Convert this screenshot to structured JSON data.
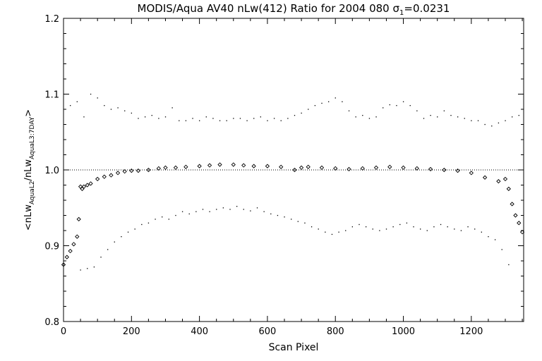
{
  "chart_data": {
    "type": "scatter",
    "title": "MODIS/Aqua AV40 nLw(412) Ratio for 2004 080",
    "sigma_label": "σ",
    "sigma_subscript": "1",
    "sigma_value": "=0.0231",
    "xlabel": "Scan Pixel",
    "ylabel": {
      "prefix": "<nLw",
      "sub1": "AquaL2",
      "mid": "/nLw",
      "sub2": "AquaL3:7DAY",
      "suffix": ">"
    },
    "xlim": [
      0,
      1354
    ],
    "ylim": [
      0.8,
      1.2
    ],
    "x_ticks": [
      "0",
      "200",
      "400",
      "600",
      "800",
      "1000",
      "1200"
    ],
    "y_ticks": [
      "0.8",
      "0.9",
      "1.0",
      "1.1",
      "1.2"
    ],
    "reference_line": 1.0,
    "series": [
      {
        "role": "mean",
        "marker": "diamond",
        "x": [
          0,
          10,
          20,
          30,
          40,
          45,
          50,
          55,
          60,
          70,
          80,
          100,
          120,
          140,
          160,
          180,
          200,
          220,
          250,
          280,
          300,
          330,
          360,
          400,
          430,
          460,
          500,
          530,
          560,
          600,
          640,
          680,
          700,
          720,
          760,
          800,
          840,
          880,
          920,
          960,
          1000,
          1040,
          1080,
          1120,
          1160,
          1200,
          1240,
          1280,
          1300,
          1310,
          1320,
          1330,
          1340,
          1350
        ],
        "y": [
          0.875,
          0.885,
          0.893,
          0.902,
          0.912,
          0.935,
          0.978,
          0.975,
          0.978,
          0.98,
          0.982,
          0.988,
          0.991,
          0.993,
          0.996,
          0.998,
          0.999,
          0.999,
          1.0,
          1.002,
          1.003,
          1.003,
          1.004,
          1.005,
          1.006,
          1.007,
          1.007,
          1.006,
          1.005,
          1.005,
          1.004,
          1.0,
          1.003,
          1.004,
          1.003,
          1.002,
          1.001,
          1.002,
          1.003,
          1.004,
          1.003,
          1.002,
          1.001,
          1.0,
          0.999,
          0.996,
          0.99,
          0.985,
          0.988,
          0.975,
          0.955,
          0.94,
          0.93,
          0.918
        ]
      },
      {
        "role": "upper envelope",
        "marker": "dot",
        "x": [
          20,
          40,
          60,
          80,
          100,
          120,
          140,
          160,
          180,
          200,
          220,
          240,
          260,
          280,
          300,
          320,
          340,
          360,
          380,
          400,
          420,
          440,
          460,
          480,
          500,
          520,
          540,
          560,
          580,
          600,
          620,
          640,
          660,
          680,
          700,
          720,
          740,
          760,
          780,
          800,
          820,
          840,
          860,
          880,
          900,
          920,
          940,
          960,
          980,
          1000,
          1020,
          1040,
          1060,
          1080,
          1100,
          1120,
          1140,
          1160,
          1180,
          1200,
          1220,
          1240,
          1260,
          1280,
          1300,
          1320,
          1340
        ],
        "y": [
          1.085,
          1.09,
          1.07,
          1.1,
          1.095,
          1.085,
          1.08,
          1.082,
          1.078,
          1.075,
          1.068,
          1.07,
          1.072,
          1.068,
          1.07,
          1.082,
          1.065,
          1.065,
          1.068,
          1.065,
          1.07,
          1.068,
          1.065,
          1.065,
          1.068,
          1.068,
          1.065,
          1.068,
          1.07,
          1.065,
          1.068,
          1.065,
          1.068,
          1.072,
          1.075,
          1.08,
          1.085,
          1.088,
          1.09,
          1.095,
          1.09,
          1.078,
          1.07,
          1.072,
          1.068,
          1.07,
          1.082,
          1.086,
          1.085,
          1.09,
          1.085,
          1.078,
          1.068,
          1.072,
          1.07,
          1.078,
          1.072,
          1.07,
          1.068,
          1.065,
          1.065,
          1.06,
          1.058,
          1.062,
          1.065,
          1.07,
          1.072
        ]
      },
      {
        "role": "lower envelope",
        "marker": "dot",
        "x": [
          50,
          70,
          90,
          110,
          130,
          150,
          170,
          190,
          210,
          230,
          250,
          270,
          290,
          310,
          330,
          350,
          370,
          390,
          410,
          430,
          450,
          470,
          490,
          510,
          530,
          550,
          570,
          590,
          610,
          630,
          650,
          670,
          690,
          710,
          730,
          750,
          770,
          790,
          810,
          830,
          850,
          870,
          890,
          910,
          930,
          950,
          970,
          990,
          1010,
          1030,
          1050,
          1070,
          1090,
          1110,
          1130,
          1150,
          1170,
          1190,
          1210,
          1230,
          1250,
          1270,
          1290,
          1310
        ],
        "y": [
          0.868,
          0.87,
          0.872,
          0.885,
          0.895,
          0.905,
          0.912,
          0.918,
          0.922,
          0.928,
          0.93,
          0.935,
          0.938,
          0.935,
          0.94,
          0.945,
          0.942,
          0.945,
          0.948,
          0.945,
          0.948,
          0.95,
          0.948,
          0.952,
          0.948,
          0.946,
          0.95,
          0.945,
          0.942,
          0.94,
          0.938,
          0.935,
          0.932,
          0.93,
          0.925,
          0.922,
          0.918,
          0.915,
          0.918,
          0.92,
          0.925,
          0.928,
          0.925,
          0.922,
          0.92,
          0.922,
          0.925,
          0.928,
          0.93,
          0.925,
          0.922,
          0.92,
          0.925,
          0.928,
          0.925,
          0.922,
          0.92,
          0.925,
          0.922,
          0.918,
          0.912,
          0.908,
          0.895,
          0.875
        ]
      }
    ],
    "grid": false,
    "legend": "none"
  }
}
